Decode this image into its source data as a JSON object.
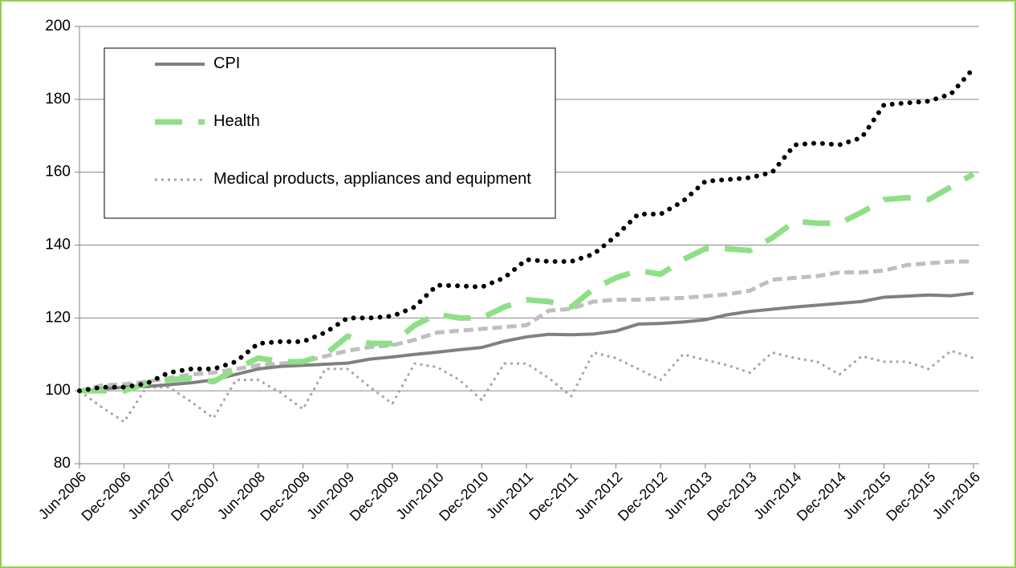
{
  "chart_data": {
    "type": "line",
    "categories": [
      "Jun-2006",
      null,
      "Dec-2006",
      null,
      "Jun-2007",
      null,
      "Dec-2007",
      null,
      "Jun-2008",
      null,
      "Dec-2008",
      null,
      "Jun-2009",
      null,
      "Dec-2009",
      null,
      "Jun-2010",
      null,
      "Dec-2010",
      null,
      "Jun-2011",
      null,
      "Dec-2011",
      null,
      "Jun-2012",
      null,
      "Dec-2012",
      null,
      "Jun-2013",
      null,
      "Dec-2013",
      null,
      "Jun-2014",
      null,
      "Dec-2014",
      null,
      "Jun-2015",
      null,
      "Dec-2015",
      null,
      "Jun-2016"
    ],
    "series": [
      {
        "name": "CPI",
        "color": "#808080",
        "style": "solid",
        "legend": true,
        "values": [
          100,
          100.5,
          101,
          101.2,
          101.7,
          102.2,
          103,
          104.5,
          106,
          106.7,
          107,
          107.3,
          107.6,
          108.7,
          109.3,
          110,
          110.6,
          111.3,
          111.9,
          113.6,
          114.8,
          115.5,
          115.4,
          115.6,
          116.4,
          118.3,
          118.5,
          118.9,
          119.5,
          120.9,
          121.8,
          122.4,
          123,
          123.5,
          124,
          124.5,
          125.7,
          126,
          126.3,
          126.1,
          126.8
        ]
      },
      {
        "name": "Health",
        "color": "#8fdf87",
        "style": "long-dash",
        "legend": true,
        "values": [
          100,
          100,
          100,
          102,
          103,
          103.5,
          102.5,
          106,
          109,
          108,
          108,
          110,
          115,
          113,
          113,
          118,
          121,
          120,
          120,
          123,
          125,
          124.5,
          123,
          128,
          131,
          133,
          132,
          136,
          139,
          139,
          138.5,
          142,
          146.5,
          146,
          146,
          149,
          152.5,
          153,
          152.5,
          156,
          159.5
        ]
      },
      {
        "name": "Medical products, appliances and equipment",
        "color": "#a6a6a6",
        "style": "dotted",
        "legend": true,
        "values": [
          100,
          95.5,
          91.5,
          101,
          101,
          97,
          92.5,
          103,
          103,
          99.5,
          95,
          106,
          106,
          101,
          96.5,
          107.5,
          106.5,
          103,
          97.5,
          107.5,
          107.5,
          103.5,
          98.5,
          110.5,
          109,
          106,
          103,
          110,
          108.5,
          107,
          105,
          110.5,
          109,
          108,
          104.5,
          109.5,
          108,
          108,
          106,
          111,
          109
        ]
      },
      {
        "color": "#000000",
        "style": "round-dot",
        "legend": false,
        "values": [
          100,
          101,
          101,
          102,
          105,
          106,
          106,
          108,
          113,
          113.5,
          113.5,
          116,
          120,
          120,
          120.5,
          123,
          129,
          128.8,
          128.5,
          131,
          136,
          135.5,
          135.5,
          137.5,
          142.5,
          148.5,
          148.5,
          152,
          157.5,
          158,
          158.5,
          160,
          167.5,
          168,
          167.5,
          169.5,
          178.5,
          179,
          179.5,
          181.5,
          188.5
        ]
      },
      {
        "color": "#bfbfbf",
        "style": "dashed",
        "legend": false,
        "values": [
          100,
          101.5,
          101.8,
          102.5,
          103.5,
          104.5,
          105,
          106,
          107,
          107.5,
          108,
          109.5,
          111,
          112,
          112.5,
          114,
          116,
          116.5,
          117,
          117.5,
          118,
          122,
          122.5,
          124.5,
          125,
          125,
          125.3,
          125.5,
          126,
          126.5,
          127.5,
          130.5,
          131,
          131.5,
          132.5,
          132.5,
          133,
          134.5,
          135,
          135.5,
          135.5
        ]
      }
    ],
    "ylim": [
      80,
      200
    ],
    "yticks": [
      80,
      100,
      120,
      140,
      160,
      180,
      200
    ],
    "grid": true,
    "legend_position": "upper left"
  }
}
